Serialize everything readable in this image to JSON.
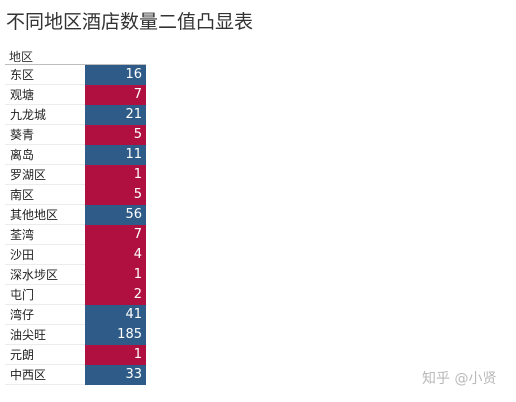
{
  "chart_data": {
    "type": "table",
    "title": "不同地区酒店数量二值凸显表",
    "column_header": "地区",
    "categories": [
      "东区",
      "观塘",
      "九龙城",
      "葵青",
      "离岛",
      "罗湖区",
      "南区",
      "其他地区",
      "荃湾",
      "沙田",
      "深水埗区",
      "屯门",
      "湾仔",
      "油尖旺",
      "元朗",
      "中西区"
    ],
    "values": [
      16,
      7,
      21,
      5,
      11,
      1,
      5,
      56,
      7,
      4,
      1,
      2,
      41,
      185,
      1,
      33
    ],
    "colors": {
      "high": "#2e5b87",
      "low": "#b01040"
    }
  },
  "watermark": "知乎 @小贤"
}
